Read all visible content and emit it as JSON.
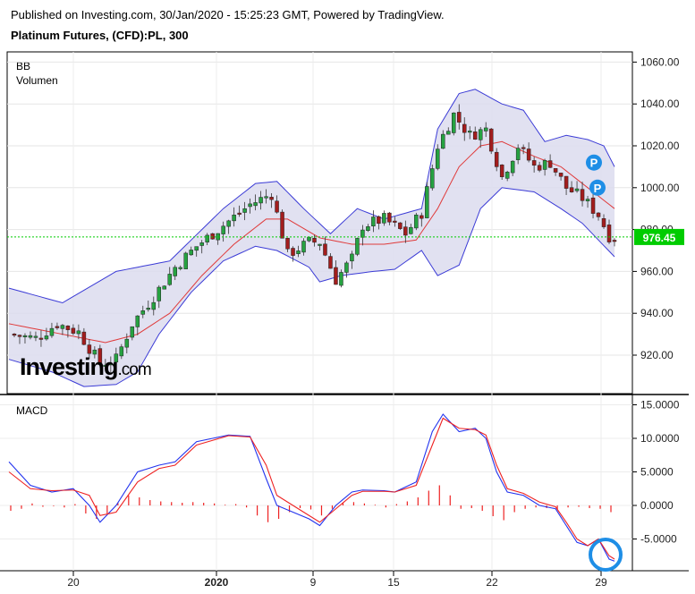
{
  "header": {
    "published": "Published on Investing.com, 30/Jan/2020 - 15:25:23 GMT, Powered by TradingView.",
    "symbol": "Platinum Futures, (CFD):PL, 300"
  },
  "indicators": {
    "bb": "BB",
    "volume": "Volumen",
    "macd": "MACD"
  },
  "logo": {
    "main": "Investing",
    "suffix": ".com"
  },
  "colors": {
    "up": "#26a241",
    "down": "#a31d1d",
    "band_fill": "#dcdcef",
    "band_line": "#3b3bd6",
    "basis": "#e03a3a",
    "macd": "#2233ee",
    "signal": "#ee2222",
    "last_price": "#00cc00"
  },
  "chart_data": [
    {
      "type": "candlestick",
      "title": "",
      "x_tick_labels": [
        "20",
        "2020",
        "9",
        "15",
        "22",
        "29"
      ],
      "y_tick_labels": [
        "920.00",
        "940.00",
        "960.00",
        "980.00",
        "1000.00",
        "1020.00",
        "1040.00",
        "1060.00"
      ],
      "ylim": [
        903,
        1067
      ],
      "last_price_label": "976.45",
      "last_price": 976.45,
      "markers": [
        {
          "label": "P",
          "price": 1012
        },
        {
          "label": "P",
          "price": 1000
        }
      ],
      "close_path": [
        [
          0,
          930
        ],
        [
          5,
          928
        ],
        [
          9,
          935
        ],
        [
          13,
          931
        ],
        [
          17,
          916
        ],
        [
          20,
          918
        ],
        [
          23,
          935
        ],
        [
          27,
          948
        ],
        [
          31,
          962
        ],
        [
          35,
          972
        ],
        [
          40,
          982
        ],
        [
          45,
          992
        ],
        [
          49,
          997
        ],
        [
          52,
          968
        ],
        [
          56,
          974
        ],
        [
          58,
          974
        ],
        [
          61,
          956
        ],
        [
          64,
          966
        ],
        [
          66,
          982
        ],
        [
          70,
          985
        ],
        [
          74,
          978
        ],
        [
          77,
          988
        ],
        [
          80,
          1020
        ],
        [
          83,
          1035
        ],
        [
          86,
          1025
        ],
        [
          89,
          1028
        ],
        [
          92,
          1005
        ],
        [
          95,
          1020
        ],
        [
          98,
          1010
        ],
        [
          101,
          1012
        ],
        [
          104,
          1000
        ],
        [
          107,
          995
        ],
        [
          110,
          987
        ],
        [
          112,
          977
        ],
        [
          113,
          976.45
        ]
      ],
      "bollinger_upper": [
        [
          0,
          952
        ],
        [
          10,
          945
        ],
        [
          20,
          960
        ],
        [
          30,
          965
        ],
        [
          40,
          990
        ],
        [
          46,
          1002
        ],
        [
          50,
          1003
        ],
        [
          55,
          990
        ],
        [
          60,
          978
        ],
        [
          65,
          990
        ],
        [
          70,
          985
        ],
        [
          77,
          990
        ],
        [
          80,
          1028
        ],
        [
          84,
          1045
        ],
        [
          87,
          1047
        ],
        [
          92,
          1040
        ],
        [
          96,
          1037
        ],
        [
          100,
          1022
        ],
        [
          104,
          1025
        ],
        [
          108,
          1023
        ],
        [
          111,
          1020
        ],
        [
          113,
          1010
        ]
      ],
      "bollinger_lower": [
        [
          0,
          918
        ],
        [
          8,
          912
        ],
        [
          14,
          905
        ],
        [
          20,
          906
        ],
        [
          24,
          912
        ],
        [
          28,
          930
        ],
        [
          34,
          950
        ],
        [
          40,
          965
        ],
        [
          46,
          972
        ],
        [
          50,
          970
        ],
        [
          56,
          962
        ],
        [
          58,
          955
        ],
        [
          62,
          958
        ],
        [
          68,
          960
        ],
        [
          72,
          961
        ],
        [
          77,
          970
        ],
        [
          80,
          958
        ],
        [
          84,
          963
        ],
        [
          88,
          990
        ],
        [
          92,
          1000
        ],
        [
          98,
          998
        ],
        [
          103,
          990
        ],
        [
          107,
          983
        ],
        [
          110,
          975
        ],
        [
          113,
          967
        ]
      ],
      "bollinger_basis": [
        [
          0,
          935
        ],
        [
          10,
          930
        ],
        [
          18,
          926
        ],
        [
          24,
          930
        ],
        [
          30,
          940
        ],
        [
          36,
          958
        ],
        [
          42,
          973
        ],
        [
          48,
          985
        ],
        [
          52,
          985
        ],
        [
          58,
          976
        ],
        [
          64,
          973
        ],
        [
          70,
          973
        ],
        [
          76,
          975
        ],
        [
          80,
          990
        ],
        [
          84,
          1010
        ],
        [
          88,
          1020
        ],
        [
          92,
          1022
        ],
        [
          98,
          1015
        ],
        [
          103,
          1010
        ],
        [
          108,
          1000
        ],
        [
          113,
          990
        ]
      ]
    },
    {
      "type": "line",
      "title": "MACD",
      "y_tick_labels": [
        "15.0000",
        "10.0000",
        "5.0000",
        "0.0000",
        "-5.0000"
      ],
      "ylim": [
        -9.5,
        15.5
      ],
      "series": [
        {
          "values": [
            [
              0,
              6.5
            ],
            [
              4,
              3
            ],
            [
              8,
              2
            ],
            [
              12,
              2.5
            ],
            [
              15,
              0
            ],
            [
              17,
              -2.5
            ],
            [
              20,
              0
            ],
            [
              24,
              5
            ],
            [
              28,
              6
            ],
            [
              31,
              6.5
            ],
            [
              35,
              9.5
            ],
            [
              38,
              10
            ],
            [
              41,
              10.5
            ],
            [
              45,
              10.3
            ],
            [
              48,
              4
            ],
            [
              50,
              0
            ],
            [
              53,
              -1
            ],
            [
              56,
              -2
            ],
            [
              58,
              -3
            ],
            [
              61,
              0
            ],
            [
              64,
              2
            ],
            [
              66,
              2.3
            ],
            [
              70,
              2.2
            ],
            [
              72,
              2
            ],
            [
              76,
              3.5
            ],
            [
              79,
              11
            ],
            [
              81,
              13.6
            ],
            [
              84,
              11
            ],
            [
              87,
              11.5
            ],
            [
              89,
              10
            ],
            [
              91,
              5
            ],
            [
              93,
              2
            ],
            [
              96,
              1.5
            ],
            [
              99,
              0
            ],
            [
              102,
              -0.5
            ],
            [
              104,
              -3
            ],
            [
              106,
              -5.5
            ],
            [
              108,
              -6
            ],
            [
              110,
              -5
            ],
            [
              112,
              -8
            ],
            [
              113,
              -8.3
            ]
          ]
        },
        {
          "values": [
            [
              0,
              5
            ],
            [
              4,
              2.5
            ],
            [
              8,
              2.2
            ],
            [
              12,
              2.3
            ],
            [
              15,
              1.5
            ],
            [
              17,
              -1.5
            ],
            [
              20,
              -1
            ],
            [
              24,
              3.5
            ],
            [
              28,
              5.5
            ],
            [
              31,
              6
            ],
            [
              35,
              9
            ],
            [
              38,
              9.7
            ],
            [
              41,
              10.4
            ],
            [
              45,
              10.2
            ],
            [
              48,
              6
            ],
            [
              50,
              1.5
            ],
            [
              53,
              0
            ],
            [
              56,
              -1.5
            ],
            [
              58,
              -2.5
            ],
            [
              61,
              -0.5
            ],
            [
              64,
              1.5
            ],
            [
              66,
              2.1
            ],
            [
              70,
              2.1
            ],
            [
              72,
              2
            ],
            [
              76,
              3
            ],
            [
              79,
              9
            ],
            [
              81,
              13
            ],
            [
              84,
              11.5
            ],
            [
              87,
              11.3
            ],
            [
              89,
              10.5
            ],
            [
              91,
              6
            ],
            [
              93,
              2.5
            ],
            [
              96,
              1.8
            ],
            [
              99,
              0.5
            ],
            [
              102,
              -0.2
            ],
            [
              104,
              -2.5
            ],
            [
              106,
              -5
            ],
            [
              108,
              -6
            ],
            [
              110,
              -5
            ],
            [
              112,
              -7.5
            ],
            [
              113,
              -8
            ]
          ]
        }
      ],
      "histogram": [
        [
          0,
          -0.8
        ],
        [
          2,
          -0.5
        ],
        [
          4,
          0.3
        ],
        [
          6,
          -0.2
        ],
        [
          8,
          -0.1
        ],
        [
          10,
          -0.3
        ],
        [
          12,
          0.2
        ],
        [
          14,
          -1.2
        ],
        [
          16,
          -2.0
        ],
        [
          18,
          -1.2
        ],
        [
          20,
          0.4
        ],
        [
          22,
          1.5
        ],
        [
          24,
          1.2
        ],
        [
          26,
          0.8
        ],
        [
          28,
          0.6
        ],
        [
          30,
          0.5
        ],
        [
          32,
          0.4
        ],
        [
          34,
          0.5
        ],
        [
          36,
          0.4
        ],
        [
          38,
          0.3
        ],
        [
          40,
          0.1
        ],
        [
          42,
          0.2
        ],
        [
          44,
          -0.3
        ],
        [
          46,
          -1.5
        ],
        [
          48,
          -2.5
        ],
        [
          50,
          -2.0
        ],
        [
          52,
          -1.0
        ],
        [
          54,
          -0.4
        ],
        [
          56,
          -0.6
        ],
        [
          58,
          -1.5
        ],
        [
          60,
          -0.5
        ],
        [
          62,
          0.4
        ],
        [
          64,
          0.5
        ],
        [
          66,
          0.3
        ],
        [
          68,
          0.1
        ],
        [
          70,
          -0.3
        ],
        [
          72,
          0.2
        ],
        [
          74,
          0.6
        ],
        [
          76,
          1.2
        ],
        [
          78,
          2.2
        ],
        [
          80,
          3.0
        ],
        [
          82,
          1.5
        ],
        [
          84,
          -0.5
        ],
        [
          86,
          -0.4
        ],
        [
          88,
          -0.8
        ],
        [
          90,
          -1.6
        ],
        [
          92,
          -2.2
        ],
        [
          94,
          -1.0
        ],
        [
          96,
          -0.5
        ],
        [
          98,
          -0.3
        ],
        [
          100,
          -0.4
        ],
        [
          102,
          -0.6
        ],
        [
          104,
          -0.3
        ],
        [
          106,
          -0.2
        ],
        [
          108,
          -0.4
        ],
        [
          110,
          -0.5
        ],
        [
          112,
          -1.0
        ]
      ]
    }
  ]
}
